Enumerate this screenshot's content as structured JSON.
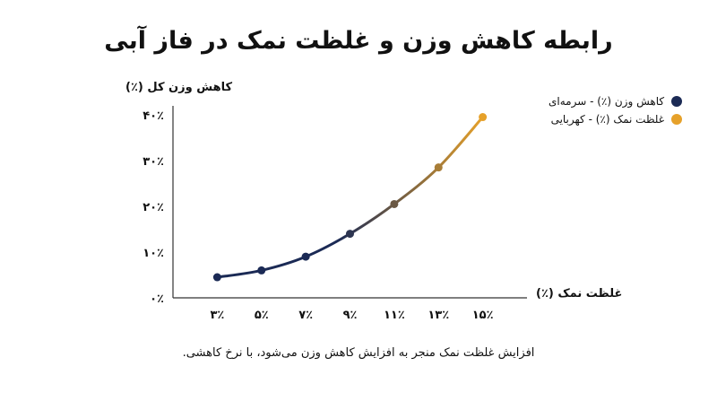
{
  "title": "رابطه کاهش وزن و غلظت نمک در فاز آبی",
  "caption": "افزایش غلظت نمک منجر به افزایش کاهش وزن می‌شود، با نرخ کاهشی.",
  "legend": [
    {
      "label": "کاهش وزن (٪) - سرمه‌ای",
      "color": "#1b2a55"
    },
    {
      "label": "غلظت نمک (٪) - کهربایی",
      "color": "#e6a12a"
    }
  ],
  "chart_data": {
    "type": "line",
    "title": "رابطه کاهش وزن و غلظت نمک در فاز آبی",
    "xlabel": "غلظت نمک (٪)",
    "ylabel": "کاهش وزن کل (٪)",
    "x_tick_labels": [
      "۳٪",
      "۵٪",
      "۷٪",
      "۹٪",
      "۱۱٪",
      "۱۳٪",
      "۱۵٪"
    ],
    "y_tick_labels": [
      "۰٪",
      "۱۰٪",
      "۲۰٪",
      "۳۰٪",
      "۴۰٪"
    ],
    "x": [
      3,
      5,
      7,
      9,
      11,
      13,
      15
    ],
    "y": [
      4.5,
      6,
      9,
      14,
      20.5,
      28.5,
      39.5
    ],
    "xlim": [
      1,
      17
    ],
    "ylim": [
      0,
      40
    ],
    "colors": {
      "start": "#1b2a55",
      "end": "#e6a12a"
    }
  }
}
